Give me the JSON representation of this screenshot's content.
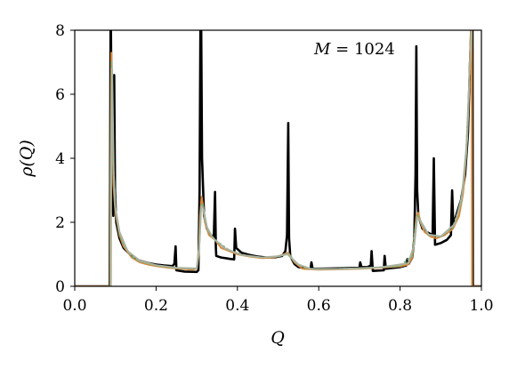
{
  "chart_data": {
    "type": "line",
    "xlabel": "Q",
    "ylabel": "ρ(Q)",
    "annotation": {
      "var": "M",
      "text": " = 1024"
    },
    "xlim": [
      0.0,
      1.0
    ],
    "ylim": [
      0,
      8
    ],
    "x_ticks": [
      "0.0",
      "0.2",
      "0.4",
      "0.6",
      "0.8",
      "1.0"
    ],
    "y_ticks": [
      "0",
      "2",
      "4",
      "6",
      "8"
    ],
    "grid": false,
    "series": [
      {
        "color": "#000000",
        "points": [
          [
            0.0,
            0.0
          ],
          [
            0.086,
            0.0
          ],
          [
            0.087,
            3.0
          ],
          [
            0.088,
            8.0
          ],
          [
            0.089,
            8.0
          ],
          [
            0.091,
            4.5
          ],
          [
            0.093,
            2.4
          ],
          [
            0.095,
            2.2
          ],
          [
            0.097,
            6.6
          ],
          [
            0.099,
            3.0
          ],
          [
            0.102,
            2.0
          ],
          [
            0.11,
            1.5
          ],
          [
            0.12,
            1.2
          ],
          [
            0.14,
            0.95
          ],
          [
            0.16,
            0.8
          ],
          [
            0.18,
            0.73
          ],
          [
            0.2,
            0.68
          ],
          [
            0.22,
            0.65
          ],
          [
            0.24,
            0.63
          ],
          [
            0.245,
            0.7
          ],
          [
            0.248,
            1.25
          ],
          [
            0.25,
            0.5
          ],
          [
            0.27,
            0.46
          ],
          [
            0.3,
            0.45
          ],
          [
            0.304,
            0.5
          ],
          [
            0.307,
            3.0
          ],
          [
            0.309,
            8.0
          ],
          [
            0.311,
            8.0
          ],
          [
            0.313,
            4.0
          ],
          [
            0.318,
            2.2
          ],
          [
            0.325,
            1.8
          ],
          [
            0.335,
            1.6
          ],
          [
            0.342,
            1.55
          ],
          [
            0.345,
            2.95
          ],
          [
            0.347,
            1.2
          ],
          [
            0.348,
            0.95
          ],
          [
            0.36,
            0.9
          ],
          [
            0.38,
            0.86
          ],
          [
            0.392,
            0.84
          ],
          [
            0.394,
            1.8
          ],
          [
            0.397,
            1.2
          ],
          [
            0.41,
            1.05
          ],
          [
            0.43,
            0.98
          ],
          [
            0.45,
            0.93
          ],
          [
            0.47,
            0.9
          ],
          [
            0.49,
            0.9
          ],
          [
            0.51,
            0.95
          ],
          [
            0.518,
            1.1
          ],
          [
            0.522,
            1.6
          ],
          [
            0.525,
            5.1
          ],
          [
            0.527,
            1.5
          ],
          [
            0.53,
            0.95
          ],
          [
            0.54,
            0.7
          ],
          [
            0.55,
            0.6
          ],
          [
            0.57,
            0.55
          ],
          [
            0.58,
            0.55
          ],
          [
            0.582,
            0.75
          ],
          [
            0.585,
            0.55
          ],
          [
            0.6,
            0.55
          ],
          [
            0.65,
            0.56
          ],
          [
            0.7,
            0.58
          ],
          [
            0.702,
            0.75
          ],
          [
            0.705,
            0.6
          ],
          [
            0.72,
            0.6
          ],
          [
            0.728,
            0.65
          ],
          [
            0.73,
            1.1
          ],
          [
            0.733,
            0.48
          ],
          [
            0.76,
            0.5
          ],
          [
            0.762,
            0.95
          ],
          [
            0.765,
            0.55
          ],
          [
            0.8,
            0.6
          ],
          [
            0.815,
            0.65
          ],
          [
            0.818,
            0.85
          ],
          [
            0.821,
            0.7
          ],
          [
            0.83,
            0.9
          ],
          [
            0.835,
            1.5
          ],
          [
            0.838,
            3.5
          ],
          [
            0.84,
            7.5
          ],
          [
            0.842,
            3.0
          ],
          [
            0.845,
            2.2
          ],
          [
            0.855,
            1.8
          ],
          [
            0.865,
            1.7
          ],
          [
            0.88,
            1.6
          ],
          [
            0.883,
            4.0
          ],
          [
            0.886,
            1.3
          ],
          [
            0.9,
            1.35
          ],
          [
            0.915,
            1.45
          ],
          [
            0.925,
            1.6
          ],
          [
            0.928,
            3.0
          ],
          [
            0.931,
            1.9
          ],
          [
            0.94,
            2.3
          ],
          [
            0.95,
            2.7
          ],
          [
            0.96,
            3.5
          ],
          [
            0.967,
            4.8
          ],
          [
            0.972,
            7.0
          ],
          [
            0.975,
            8.0
          ],
          [
            0.978,
            8.0
          ],
          [
            0.979,
            0.0
          ],
          [
            1.0,
            0.0
          ]
        ]
      },
      {
        "color": "#D9883A",
        "points": [
          [
            0.0,
            0.0
          ],
          [
            0.087,
            0.0
          ],
          [
            0.088,
            3.5
          ],
          [
            0.09,
            7.3
          ],
          [
            0.092,
            5.5
          ],
          [
            0.095,
            3.2
          ],
          [
            0.1,
            2.3
          ],
          [
            0.11,
            1.6
          ],
          [
            0.12,
            1.25
          ],
          [
            0.14,
            0.9
          ],
          [
            0.16,
            0.75
          ],
          [
            0.18,
            0.68
          ],
          [
            0.2,
            0.63
          ],
          [
            0.23,
            0.58
          ],
          [
            0.26,
            0.55
          ],
          [
            0.29,
            0.52
          ],
          [
            0.3,
            0.55
          ],
          [
            0.305,
            1.0
          ],
          [
            0.308,
            2.2
          ],
          [
            0.312,
            2.8
          ],
          [
            0.316,
            2.5
          ],
          [
            0.32,
            2.0
          ],
          [
            0.33,
            1.6
          ],
          [
            0.345,
            1.45
          ],
          [
            0.36,
            1.2
          ],
          [
            0.38,
            1.1
          ],
          [
            0.4,
            1.0
          ],
          [
            0.43,
            0.93
          ],
          [
            0.46,
            0.88
          ],
          [
            0.49,
            0.9
          ],
          [
            0.51,
            0.98
          ],
          [
            0.525,
            1.05
          ],
          [
            0.54,
            0.75
          ],
          [
            0.56,
            0.55
          ],
          [
            0.6,
            0.52
          ],
          [
            0.65,
            0.53
          ],
          [
            0.7,
            0.55
          ],
          [
            0.75,
            0.58
          ],
          [
            0.8,
            0.62
          ],
          [
            0.82,
            0.68
          ],
          [
            0.83,
            0.9
          ],
          [
            0.836,
            1.6
          ],
          [
            0.84,
            2.2
          ],
          [
            0.845,
            2.3
          ],
          [
            0.85,
            2.0
          ],
          [
            0.86,
            1.7
          ],
          [
            0.875,
            1.55
          ],
          [
            0.89,
            1.5
          ],
          [
            0.91,
            1.6
          ],
          [
            0.93,
            1.8
          ],
          [
            0.945,
            2.2
          ],
          [
            0.955,
            2.9
          ],
          [
            0.963,
            4.2
          ],
          [
            0.969,
            6.0
          ],
          [
            0.974,
            8.0
          ],
          [
            0.976,
            8.0
          ],
          [
            0.977,
            0.0
          ],
          [
            1.0,
            0.0
          ]
        ]
      },
      {
        "color": "#72AE7E",
        "points": [
          [
            0.088,
            0.0
          ],
          [
            0.089,
            4.0
          ],
          [
            0.091,
            7.0
          ],
          [
            0.094,
            4.0
          ],
          [
            0.1,
            2.4
          ],
          [
            0.11,
            1.65
          ],
          [
            0.12,
            1.3
          ],
          [
            0.14,
            0.93
          ],
          [
            0.16,
            0.78
          ],
          [
            0.2,
            0.65
          ],
          [
            0.25,
            0.57
          ],
          [
            0.3,
            0.55
          ],
          [
            0.306,
            1.2
          ],
          [
            0.31,
            2.4
          ],
          [
            0.314,
            2.6
          ],
          [
            0.32,
            2.05
          ],
          [
            0.33,
            1.65
          ],
          [
            0.35,
            1.4
          ],
          [
            0.38,
            1.12
          ],
          [
            0.42,
            0.96
          ],
          [
            0.46,
            0.9
          ],
          [
            0.5,
            0.93
          ],
          [
            0.525,
            1.02
          ],
          [
            0.545,
            0.72
          ],
          [
            0.57,
            0.56
          ],
          [
            0.6,
            0.53
          ],
          [
            0.7,
            0.56
          ],
          [
            0.8,
            0.63
          ],
          [
            0.83,
            0.95
          ],
          [
            0.838,
            1.9
          ],
          [
            0.843,
            2.25
          ],
          [
            0.85,
            2.0
          ],
          [
            0.87,
            1.6
          ],
          [
            0.9,
            1.55
          ],
          [
            0.93,
            1.85
          ],
          [
            0.95,
            2.6
          ],
          [
            0.962,
            4.0
          ],
          [
            0.97,
            6.3
          ],
          [
            0.975,
            8.0
          ],
          [
            0.977,
            8.0
          ]
        ]
      },
      {
        "color": "#A9B3A0",
        "points": [
          [
            0.089,
            0.0
          ],
          [
            0.09,
            4.5
          ],
          [
            0.092,
            6.8
          ],
          [
            0.096,
            3.5
          ],
          [
            0.1,
            2.45
          ],
          [
            0.11,
            1.7
          ],
          [
            0.13,
            1.1
          ],
          [
            0.16,
            0.8
          ],
          [
            0.2,
            0.66
          ],
          [
            0.25,
            0.58
          ],
          [
            0.3,
            0.56
          ],
          [
            0.307,
            1.4
          ],
          [
            0.311,
            2.5
          ],
          [
            0.316,
            2.45
          ],
          [
            0.325,
            1.85
          ],
          [
            0.34,
            1.5
          ],
          [
            0.37,
            1.18
          ],
          [
            0.41,
            0.98
          ],
          [
            0.46,
            0.9
          ],
          [
            0.5,
            0.94
          ],
          [
            0.523,
            1.0
          ],
          [
            0.55,
            0.68
          ],
          [
            0.58,
            0.55
          ],
          [
            0.65,
            0.54
          ],
          [
            0.75,
            0.59
          ],
          [
            0.82,
            0.72
          ],
          [
            0.835,
            1.3
          ],
          [
            0.842,
            2.15
          ],
          [
            0.85,
            2.05
          ],
          [
            0.87,
            1.62
          ],
          [
            0.9,
            1.56
          ],
          [
            0.935,
            1.95
          ],
          [
            0.952,
            2.8
          ],
          [
            0.965,
            4.6
          ],
          [
            0.972,
            7.0
          ],
          [
            0.976,
            8.0
          ]
        ]
      }
    ]
  }
}
